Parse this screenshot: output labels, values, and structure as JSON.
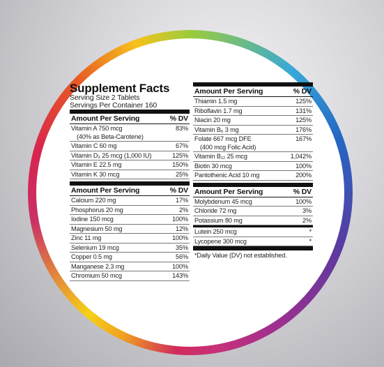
{
  "left": {
    "title": "Supplement Facts",
    "serving_size": "Serving Size 2 Tablets",
    "servings_per_container": "Servings Per Container 160",
    "sections": [
      {
        "header": {
          "amount": "Amount Per Serving",
          "dv": "% DV"
        },
        "rows": [
          {
            "name": "Vitamin A 750 mcg",
            "sub": "(40% as Beta-Carotene)",
            "dv": "83%"
          },
          {
            "name": "Vitamin C 60 mg",
            "dv": "67%"
          },
          {
            "name": "Vitamin D₃ 25 mcg (1,000 IU)",
            "dv": "125%"
          },
          {
            "name": "Vitamin E 22.5 mg",
            "dv": "150%"
          },
          {
            "name": "Vitamin K 30 mcg",
            "dv": "25%"
          }
        ]
      },
      {
        "header": {
          "amount": "Amount Per Serving",
          "dv": "% DV"
        },
        "rows": [
          {
            "name": "Calcium 220 mg",
            "dv": "17%"
          },
          {
            "name": "Phosphorus 20 mg",
            "dv": "2%"
          },
          {
            "name": "Iodine 150 mcg",
            "dv": "100%"
          },
          {
            "name": "Magnesium 50 mg",
            "dv": "12%"
          },
          {
            "name": "Zinc 11 mg",
            "dv": "100%"
          },
          {
            "name": "Selenium 19 mcg",
            "dv": "35%"
          },
          {
            "name": "Copper 0.5 mg",
            "dv": "56%"
          },
          {
            "name": "Manganese 2.3 mg",
            "dv": "100%"
          },
          {
            "name": "Chromium 50 mcg",
            "dv": "143%"
          }
        ]
      }
    ]
  },
  "right": {
    "sections": [
      {
        "header": {
          "amount": "Amount Per Serving",
          "dv": "% DV"
        },
        "rows": [
          {
            "name": "Thiamin 1.5 mg",
            "dv": "125%"
          },
          {
            "name": "Riboflavin 1.7 mg",
            "dv": "131%"
          },
          {
            "name": "Niacin 20 mg",
            "dv": "125%"
          },
          {
            "name": "Vitamin B₆ 3 mg",
            "dv": "176%"
          },
          {
            "name": "Folate 667 mcg DFE",
            "sub": "(400 mcg Folic Acid)",
            "dv": "167%"
          },
          {
            "name": "Vitamin B₁₂ 25 mcg",
            "dv": "1,042%"
          },
          {
            "name": "Biotin 30 mcg",
            "dv": "100%"
          },
          {
            "name": "Pantothenic Acid 10 mg",
            "dv": "200%"
          }
        ]
      },
      {
        "header": {
          "amount": "Amount Per Serving",
          "dv": "% DV"
        },
        "rows": [
          {
            "name": "Molybdenum 45 mcg",
            "dv": "100%"
          },
          {
            "name": "Chloride 72 mg",
            "dv": "3%"
          },
          {
            "name": "Potassium 80 mg",
            "dv": "2%"
          }
        ],
        "starred_rows": [
          {
            "name": "Lutein 250 mcg",
            "dv": "*"
          },
          {
            "name": "Lycopene 300 mcg",
            "dv": "*"
          }
        ],
        "footnote": "*Daily Value (DV) not established."
      }
    ]
  }
}
